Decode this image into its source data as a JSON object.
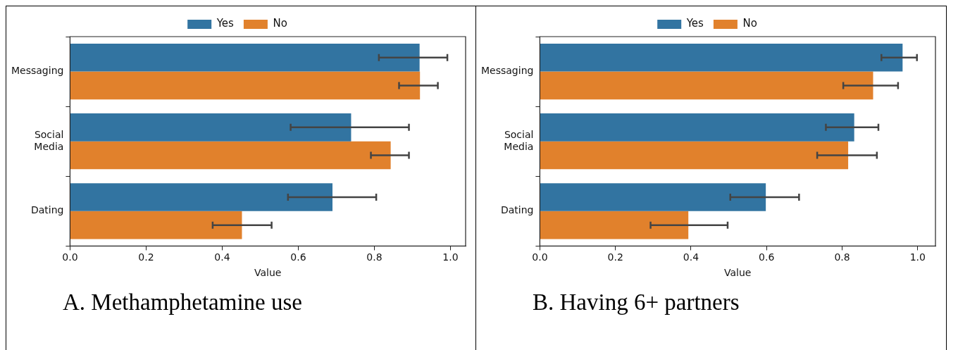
{
  "chart_data": [
    {
      "type": "bar",
      "orientation": "horizontal",
      "title": "A.   Methamphetamine use",
      "xlabel": "Value",
      "categories": [
        "Messaging",
        "Social Media",
        "Dating"
      ],
      "series": [
        {
          "name": "Yes",
          "color": "#3274a1",
          "values": [
            0.919,
            0.739,
            0.69
          ],
          "errors": [
            [
              0.812,
              0.992
            ],
            [
              0.58,
              0.891
            ],
            [
              0.573,
              0.805
            ]
          ]
        },
        {
          "name": "No",
          "color": "#e1812c",
          "values": [
            0.92,
            0.843,
            0.452
          ],
          "errors": [
            [
              0.865,
              0.967
            ],
            [
              0.791,
              0.891
            ],
            [
              0.375,
              0.53
            ]
          ]
        }
      ],
      "xlim": [
        0,
        1.04
      ],
      "xticks": [
        {
          "value": 0,
          "label": "0.0"
        },
        {
          "value": 0.2,
          "label": "0.2"
        },
        {
          "value": 0.4,
          "label": "0.4"
        },
        {
          "value": 0.6,
          "label": "0.6"
        },
        {
          "value": 0.8,
          "label": "0.8"
        },
        {
          "value": 1,
          "label": "1.0"
        }
      ],
      "legend": "top"
    },
    {
      "type": "bar",
      "orientation": "horizontal",
      "title": "B.   Having 6+ partners",
      "xlabel": "Value",
      "categories": [
        "Messaging",
        "Social Media",
        "Dating"
      ],
      "series": [
        {
          "name": "Yes",
          "color": "#3274a1",
          "values": [
            0.96,
            0.832,
            0.598
          ],
          "errors": [
            [
              0.904,
              0.998
            ],
            [
              0.757,
              0.896
            ],
            [
              0.504,
              0.686
            ]
          ]
        },
        {
          "name": "No",
          "color": "#e1812c",
          "values": [
            0.882,
            0.816,
            0.393
          ],
          "errors": [
            [
              0.803,
              0.948
            ],
            [
              0.734,
              0.892
            ],
            [
              0.293,
              0.497
            ]
          ]
        }
      ],
      "xlim": [
        0,
        1.047
      ],
      "xticks": [
        {
          "value": 0,
          "label": "0.0"
        },
        {
          "value": 0.2,
          "label": "0.2"
        },
        {
          "value": 0.4,
          "label": "0.4"
        },
        {
          "value": 0.6,
          "label": "0.6"
        },
        {
          "value": 0.8,
          "label": "0.8"
        },
        {
          "value": 1,
          "label": "1.0"
        }
      ],
      "legend": "top"
    }
  ]
}
